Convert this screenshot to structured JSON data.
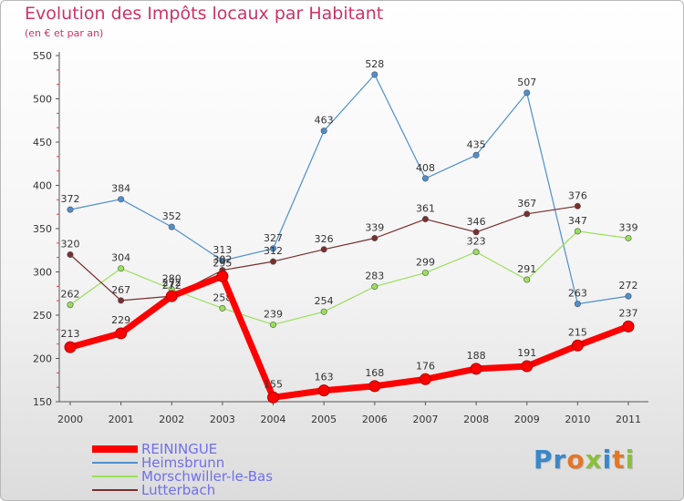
{
  "chart_data": {
    "type": "line",
    "title": "Evolution des Impôts locaux par Habitant",
    "subtitle": "(en € et par an)",
    "categories": [
      "2000",
      "2001",
      "2002",
      "2003",
      "2004",
      "2005",
      "2006",
      "2007",
      "2008",
      "2009",
      "2010",
      "2011"
    ],
    "ylim": [
      150,
      550
    ],
    "yticks": [
      150,
      200,
      250,
      300,
      350,
      400,
      450,
      500,
      550
    ],
    "grid": false,
    "legend_position": "bottom-left",
    "series": [
      {
        "name": "REININGUE",
        "color": "#ff0000",
        "values": [
          213,
          229,
          272,
          295,
          155,
          163,
          168,
          176,
          188,
          191,
          215,
          237
        ]
      },
      {
        "name": "Heimsbrunn",
        "color": "#4e8fce",
        "values": [
          372,
          384,
          352,
          313,
          327,
          463,
          528,
          408,
          435,
          507,
          263,
          272
        ]
      },
      {
        "name": "Morschwiller-le-Bas",
        "color": "#99e05a",
        "values": [
          262,
          304,
          280,
          258,
          239,
          254,
          283,
          299,
          323,
          291,
          347,
          339
        ]
      },
      {
        "name": "Lutterbach",
        "color": "#7a2e2e",
        "values": [
          320,
          267,
          272,
          302,
          312,
          326,
          339,
          361,
          346,
          367,
          376,
          null
        ]
      }
    ]
  },
  "logo": {
    "text": "Proxiti"
  }
}
